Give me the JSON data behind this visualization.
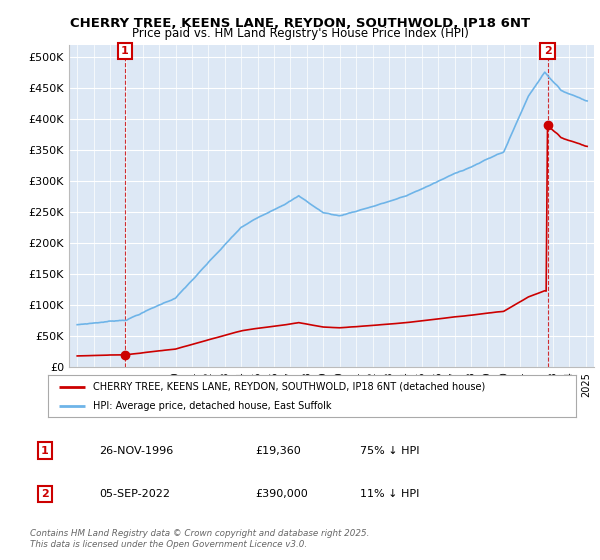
{
  "title_line1": "CHERRY TREE, KEENS LANE, REYDON, SOUTHWOLD, IP18 6NT",
  "title_line2": "Price paid vs. HM Land Registry's House Price Index (HPI)",
  "ylim": [
    0,
    520000
  ],
  "yticks": [
    0,
    50000,
    100000,
    150000,
    200000,
    250000,
    300000,
    350000,
    400000,
    450000,
    500000
  ],
  "ytick_labels": [
    "£0",
    "£50K",
    "£100K",
    "£150K",
    "£200K",
    "£250K",
    "£300K",
    "£350K",
    "£400K",
    "£450K",
    "£500K"
  ],
  "hpi_color": "#6eb4e8",
  "sale_color": "#cc0000",
  "background_color": "#dde8f5",
  "grid_color": "#ffffff",
  "sale1_date": 1996.9,
  "sale1_price": 19360,
  "sale2_date": 2022.67,
  "sale2_price": 390000,
  "legend_line1": "CHERRY TREE, KEENS LANE, REYDON, SOUTHWOLD, IP18 6NT (detached house)",
  "legend_line2": "HPI: Average price, detached house, East Suffolk",
  "table_row1": [
    "1",
    "26-NOV-1996",
    "£19,360",
    "75% ↓ HPI"
  ],
  "table_row2": [
    "2",
    "05-SEP-2022",
    "£390,000",
    "11% ↓ HPI"
  ],
  "footnote": "Contains HM Land Registry data © Crown copyright and database right 2025.\nThis data is licensed under the Open Government Licence v3.0.",
  "xlim_start": 1993.5,
  "xlim_end": 2025.5
}
